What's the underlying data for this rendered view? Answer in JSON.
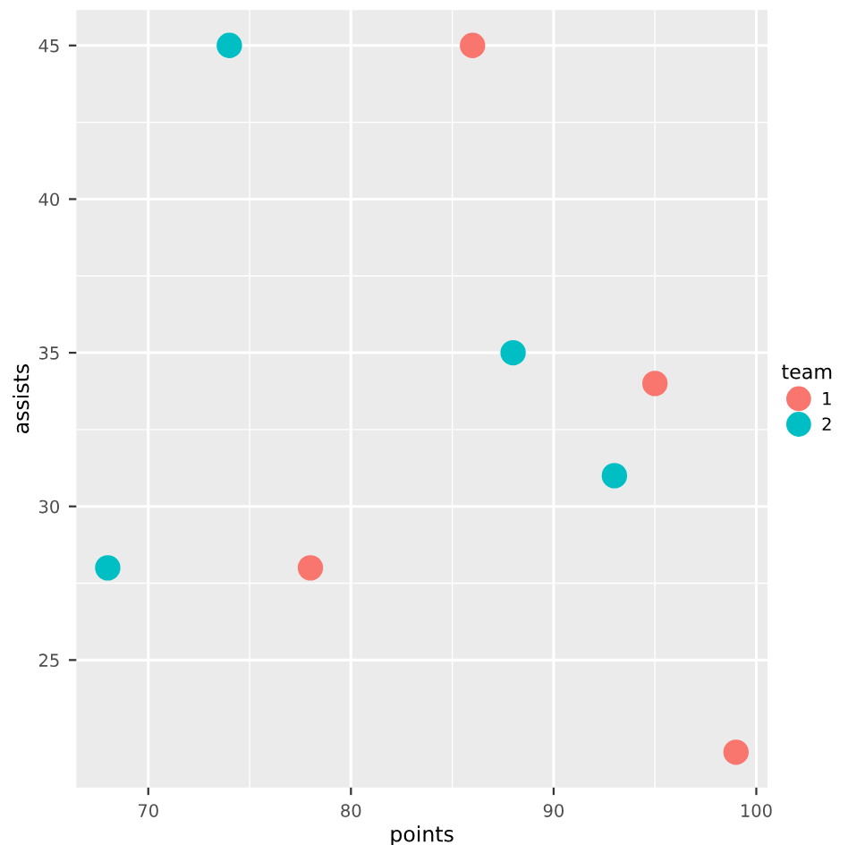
{
  "chart_data": {
    "type": "scatter",
    "xlabel": "points",
    "ylabel": "assists",
    "legend_title": "team",
    "series": [
      {
        "name": "1",
        "color": "#f8766d",
        "x": [
          86,
          95,
          78,
          99
        ],
        "values": [
          45,
          34,
          28,
          22
        ]
      },
      {
        "name": "2",
        "color": "#00bfc4",
        "x": [
          74,
          88,
          93,
          68
        ],
        "values": [
          45,
          35,
          31,
          28
        ]
      }
    ],
    "xlim": [
      66.45,
      100.55
    ],
    "ylim": [
      20.85,
      46.15
    ],
    "xticks": [
      70,
      80,
      90,
      100
    ],
    "yticks": [
      25,
      30,
      35,
      40,
      45
    ],
    "grid": true,
    "legend": "right",
    "marker": "circle"
  }
}
